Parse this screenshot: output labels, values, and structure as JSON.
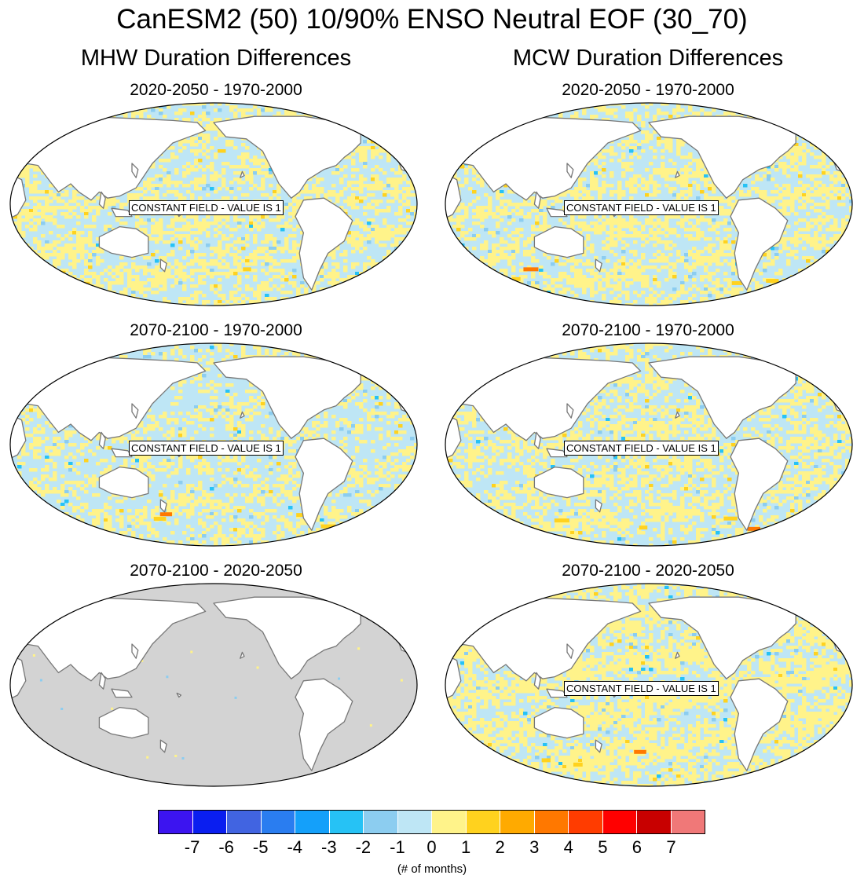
{
  "title": "CanESM2 (50) 10/90% ENSO Neutral EOF (30_70)",
  "columns": [
    {
      "title": "MHW Duration Differences"
    },
    {
      "title": "MCW Duration Differences"
    }
  ],
  "panels": [
    {
      "title": "2020-2050 - 1970-2000",
      "variable": "MHW",
      "pattern": "mixed",
      "seed": 11,
      "label": "CONSTANT FIELD - VALUE IS 1"
    },
    {
      "title": "2020-2050 - 1970-2000",
      "variable": "MCW",
      "pattern": "mixed",
      "seed": 23,
      "label": "CONSTANT FIELD - VALUE IS 1"
    },
    {
      "title": "2070-2100 - 1970-2000",
      "variable": "MHW",
      "pattern": "mixed_blue",
      "seed": 37,
      "label": "CONSTANT FIELD - VALUE IS 1"
    },
    {
      "title": "2070-2100 - 1970-2000",
      "variable": "MCW",
      "pattern": "mixed",
      "seed": 41,
      "label": "CONSTANT FIELD - VALUE IS 1"
    },
    {
      "title": "2070-2100 - 2020-2050",
      "variable": "MHW",
      "pattern": "constant_gray",
      "seed": 53,
      "label": ""
    },
    {
      "title": "2070-2100 - 2020-2050",
      "variable": "MCW",
      "pattern": "mixed_yellow",
      "seed": 67,
      "label": "CONSTANT FIELD - VALUE IS 1"
    }
  ],
  "colorbar": {
    "colors": [
      "#3c14f0",
      "#0a1ef0",
      "#4164e1",
      "#2a7df0",
      "#14a0fa",
      "#26c2f5",
      "#8ccdf0",
      "#bee6f5",
      "#fff38a",
      "#ffd21e",
      "#ffaa00",
      "#ff7800",
      "#ff3c00",
      "#ff0000",
      "#c80000",
      "#f07878"
    ],
    "ticks": [
      "-7",
      "-6",
      "-5",
      "-4",
      "-3",
      "-2",
      "-1",
      "0",
      "1",
      "2",
      "3",
      "4",
      "5",
      "6",
      "7"
    ],
    "units": "(# of months)"
  }
}
